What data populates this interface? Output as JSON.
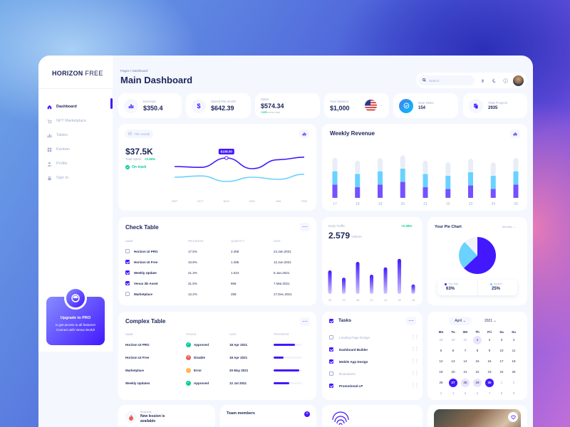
{
  "sidebar": {
    "logo_bold": "HORIZON",
    "logo_light": "FREE",
    "items": [
      {
        "label": "Dashboard",
        "icon": "home-icon"
      },
      {
        "label": "NFT Marketplace",
        "icon": "cart-icon"
      },
      {
        "label": "Tables",
        "icon": "bar-chart-icon"
      },
      {
        "label": "Kanban",
        "icon": "grid-icon"
      },
      {
        "label": "Profile",
        "icon": "person-icon"
      },
      {
        "label": "Sign In",
        "icon": "lock-icon"
      }
    ],
    "promo": {
      "title": "Upgrade to PRO",
      "text": "to get access to all features! Connect with Venus World!"
    }
  },
  "header": {
    "breadcrumb": "Pages / Dashboard",
    "title": "Main Dashboard",
    "search_placeholder": "Search"
  },
  "stats": [
    {
      "label": "Earnings",
      "value": "$350.4"
    },
    {
      "label": "Spend this month",
      "value": "$642.39"
    },
    {
      "label": "Sales",
      "value": "$574.34",
      "change": "+23%",
      "change_suffix": "since last"
    },
    {
      "label": "Your balance",
      "value": "$1,000"
    },
    {
      "label": "New Tasks",
      "value": "154"
    },
    {
      "label": "Total Projects",
      "value": "2935"
    }
  ],
  "total_spent": {
    "range_label": "This month",
    "value": "$37.5K",
    "label": "Total Spent",
    "change": "+2.45%",
    "status": "On track",
    "tooltip": "$108.00",
    "months": [
      "SEP",
      "OCT",
      "NOV",
      "DEC",
      "JAN",
      "FEB"
    ]
  },
  "weekly_revenue": {
    "title": "Weekly Revenue",
    "days": [
      "17",
      "18",
      "19",
      "20",
      "21",
      "22",
      "23",
      "24",
      "25"
    ]
  },
  "check_table": {
    "title": "Check Table",
    "columns": [
      "NAME",
      "PROGRESS",
      "QUANTITY",
      "DATE"
    ],
    "rows": [
      {
        "checked": false,
        "name": "Horizon UI PRO",
        "progress": "17.5%",
        "quantity": "2.458",
        "date": "24.Jan.2021"
      },
      {
        "checked": true,
        "name": "Horizon UI Free",
        "progress": "10.8%",
        "quantity": "1.485",
        "date": "12.Jun.2021"
      },
      {
        "checked": true,
        "name": "Weekly Update",
        "progress": "21.3%",
        "quantity": "1.024",
        "date": "5.Jan.2021"
      },
      {
        "checked": true,
        "name": "Venus 3D Asset",
        "progress": "31.5%",
        "quantity": "858",
        "date": "7.Mar.2021"
      },
      {
        "checked": false,
        "name": "Marketplace",
        "progress": "12.2%",
        "quantity": "258",
        "date": "17.Dec.2021"
      }
    ]
  },
  "daily_traffic": {
    "label": "Daily Traffic",
    "value": "2.579",
    "unit": "Visitors",
    "change": "+2.45%",
    "hours": [
      "00",
      "04",
      "08",
      "12",
      "14",
      "16",
      "18"
    ]
  },
  "pie_card": {
    "title": "Your Pie Chart",
    "range": "Monthly",
    "legend": [
      {
        "label": "Your files",
        "value": "63%",
        "color": "#4318ff"
      },
      {
        "label": "System",
        "value": "25%",
        "color": "#6ad2ff"
      }
    ]
  },
  "complex_table": {
    "title": "Complex Table",
    "columns": [
      "NAME",
      "STATUS",
      "DATE",
      "PROGRESS"
    ],
    "rows": [
      {
        "name": "Horizon UI PRO",
        "status": "Approved",
        "status_icon": "check-circle-icon",
        "date": "18 Apr 2021",
        "progress": 0.75
      },
      {
        "name": "Horizon UI Free",
        "status": "Disable",
        "status_icon": "x-circle-icon",
        "date": "18 Apr 2021",
        "progress": 0.35
      },
      {
        "name": "Marketplace",
        "status": "Error",
        "status_icon": "alert-circle-icon",
        "date": "20 May 2021",
        "progress": 0.9
      },
      {
        "name": "Weekly Updates",
        "status": "Approved",
        "status_icon": "check-circle-icon",
        "date": "12 Jul 2021",
        "progress": 0.55
      }
    ]
  },
  "tasks": {
    "title": "Tasks",
    "items": [
      {
        "label": "Landing Page Design",
        "checked": false
      },
      {
        "label": "Dashboard Builder",
        "checked": true
      },
      {
        "label": "Mobile App Design",
        "checked": true
      },
      {
        "label": "Illustrations",
        "checked": false
      },
      {
        "label": "Promotional LP",
        "checked": true
      }
    ]
  },
  "calendar": {
    "month": "April",
    "year": "2021",
    "weekdays": [
      "Mo",
      "Tu",
      "We",
      "Th",
      "Fri",
      "Sa",
      "Su"
    ],
    "weeks": [
      [
        "29",
        "30",
        "31",
        "1",
        "2",
        "3",
        "4"
      ],
      [
        "5",
        "6",
        "7",
        "8",
        "9",
        "10",
        "11"
      ],
      [
        "12",
        "13",
        "14",
        "15",
        "16",
        "17",
        "18"
      ],
      [
        "19",
        "20",
        "21",
        "22",
        "23",
        "24",
        "25"
      ],
      [
        "26",
        "27",
        "28",
        "29",
        "30",
        "1",
        "2"
      ],
      [
        "3",
        "4",
        "5",
        "6",
        "7",
        "8",
        "9"
      ]
    ]
  },
  "bottom": {
    "business_label": "Business",
    "session_title": "New lession is available",
    "team_title": "Team members"
  },
  "chart_data": [
    {
      "type": "line",
      "x": [
        "SEP",
        "OCT",
        "NOV",
        "DEC",
        "JAN",
        "FEB"
      ],
      "series": [
        {
          "values": [
            60,
            58,
            80,
            55,
            76,
            82
          ]
        },
        {
          "values": [
            35,
            38,
            25,
            35,
            30,
            42
          ]
        }
      ],
      "annotations": [
        "$108.00"
      ]
    },
    {
      "type": "bar",
      "title": "Weekly Revenue",
      "categories": [
        "17",
        "18",
        "19",
        "20",
        "21",
        "22",
        "23",
        "24",
        "25"
      ],
      "series": [
        {
          "values": [
            15,
            15,
            15,
            15,
            15,
            15,
            15,
            15,
            15
          ]
        },
        {
          "values": [
            15,
            15,
            15,
            15,
            15,
            15,
            15,
            15,
            15
          ]
        },
        {
          "values": [
            15,
            12,
            15,
            18,
            12,
            10,
            14,
            10,
            15
          ]
        }
      ]
    },
    {
      "type": "bar",
      "categories": [
        "00",
        "04",
        "08",
        "12",
        "14",
        "16",
        "18"
      ],
      "values": [
        55,
        38,
        75,
        45,
        62,
        82,
        22
      ]
    },
    {
      "type": "pie",
      "categories": [
        "Your files",
        "System",
        "Other"
      ],
      "values": [
        63,
        25,
        12
      ]
    }
  ]
}
